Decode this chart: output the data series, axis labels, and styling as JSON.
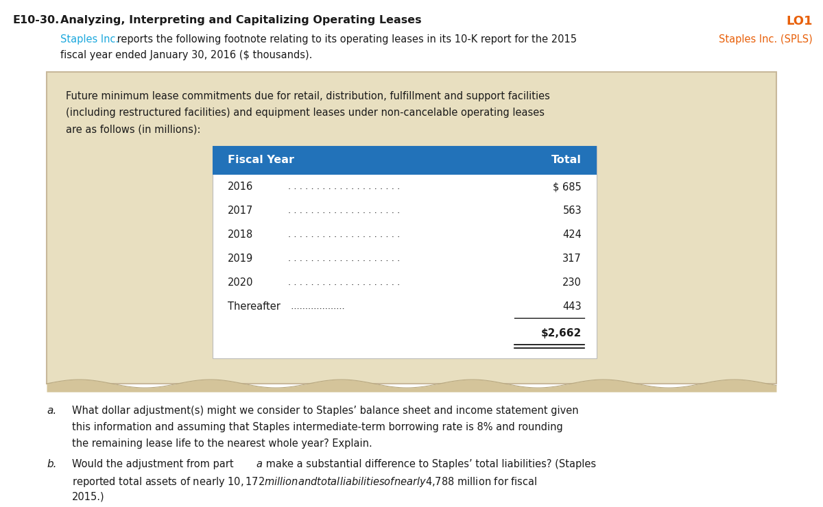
{
  "title_prefix": "E10-30.",
  "title_main": "Analyzing, Interpreting and Capitalizing Operating Leases",
  "lo_label": "LO1",
  "company_label": "Staples Inc. (SPLS)",
  "intro_blue": "Staples Inc.",
  "intro_rest": " reports the following footnote relating to its operating leases in its 10-K report for the 2015",
  "intro_line2": "fiscal year ended January 30, 2016 ($ thousands).",
  "box_line1": "Future minimum lease commitments due for retail, distribution, fulfillment and support facilities",
  "box_line2": "(including restructured facilities) and equipment leases under non-cancelable operating leases",
  "box_line3": "are as follows (in millions):",
  "table_header_col1": "Fiscal Year",
  "table_header_col2": "Total",
  "table_rows": [
    [
      "2016",
      "$ 685"
    ],
    [
      "2017",
      "563"
    ],
    [
      "2018",
      "424"
    ],
    [
      "2019",
      "317"
    ],
    [
      "2020",
      "230"
    ],
    [
      "Thereafter",
      "443"
    ]
  ],
  "table_total": "$2,662",
  "qa_label": "a.",
  "qa_line1": "What dollar adjustment(s) might we consider to Staples’ balance sheet and income statement given",
  "qa_line2": "this information and assuming that Staples intermediate-term borrowing rate is 8% and rounding",
  "qa_line3": "the remaining lease life to the nearest whole year? Explain.",
  "qb_label": "b.",
  "qb_line1": "Would the adjustment from part a make a substantial difference to Staples’ total liabilities? (Staples",
  "qb_line2": "reported total assets of nearly $10,172 million and total liabilities of nearly $4,788 million for fiscal",
  "qb_line3": "2015.)",
  "color_blue": "#1ca8dd",
  "color_orange": "#e8600a",
  "color_header_bg": "#2272b9",
  "color_box_bg": "#e8dfc0",
  "color_black": "#1a1a1a",
  "color_white": "#ffffff",
  "color_border": "#c8b89a"
}
